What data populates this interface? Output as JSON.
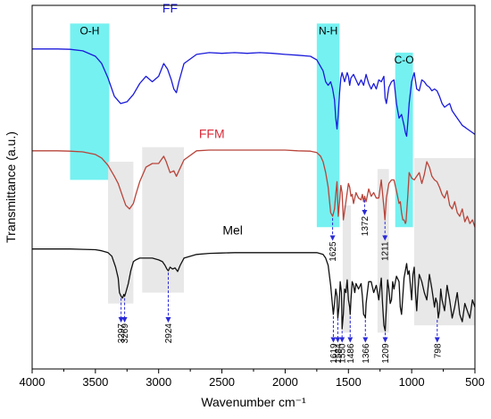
{
  "chart_data": {
    "type": "line",
    "title": "",
    "xlabel": "Wavenumber cm⁻¹",
    "ylabel": "Transmittance (a.u.)",
    "xlim": [
      4000,
      500
    ],
    "x_reversed": true,
    "xticks": [
      "4000",
      "3500",
      "3000",
      "2500",
      "2000",
      "1500",
      "1000",
      "500"
    ],
    "xtick_values": [
      4000,
      3500,
      3000,
      2500,
      2000,
      1500,
      1000,
      500
    ],
    "ylim": [
      0,
      100
    ],
    "y_ticks_shown": false,
    "grid": false,
    "series": [
      {
        "name": "FF",
        "color": "#1a1adb",
        "x": [
          4000,
          3800,
          3700,
          3600,
          3500,
          3450,
          3400,
          3350,
          3300,
          3250,
          3200,
          3150,
          3100,
          3050,
          3000,
          2960,
          2930,
          2900,
          2880,
          2860,
          2840,
          2800,
          2700,
          2600,
          2500,
          2400,
          2300,
          2200,
          2100,
          2000,
          1900,
          1800,
          1750,
          1700,
          1680,
          1660,
          1640,
          1625,
          1610,
          1600,
          1590,
          1580,
          1570,
          1560,
          1550,
          1530,
          1510,
          1500,
          1490,
          1480,
          1460,
          1440,
          1420,
          1400,
          1380,
          1370,
          1360,
          1340,
          1320,
          1300,
          1280,
          1260,
          1240,
          1220,
          1210,
          1200,
          1180,
          1160,
          1140,
          1120,
          1100,
          1080,
          1060,
          1050,
          1040,
          1030,
          1020,
          1000,
          980,
          960,
          940,
          920,
          900,
          880,
          860,
          840,
          820,
          800,
          780,
          760,
          740,
          720,
          700,
          680,
          660,
          640,
          620,
          600,
          580,
          560,
          540,
          520,
          500
        ],
        "y": [
          88.0,
          88.0,
          87.9,
          87.5,
          86.0,
          84.0,
          80.0,
          75.0,
          73.0,
          73.5,
          75.5,
          78.5,
          80.5,
          79.0,
          80.5,
          84.0,
          82.5,
          79.5,
          77.0,
          76.0,
          79.0,
          84.0,
          86.5,
          87.0,
          86.8,
          87.0,
          86.8,
          87.0,
          86.8,
          86.5,
          86.3,
          86.0,
          85.0,
          82.0,
          79.0,
          78.0,
          79.0,
          77.0,
          74.0,
          69.0,
          66.0,
          70.0,
          76.0,
          80.0,
          81.5,
          79.0,
          81.5,
          80.5,
          78.0,
          80.0,
          81.0,
          79.5,
          78.0,
          79.5,
          78.0,
          79.5,
          81.0,
          78.5,
          77.0,
          78.5,
          77.0,
          79.5,
          79.0,
          80.5,
          74.5,
          73.0,
          77.5,
          79.0,
          79.5,
          73.0,
          69.0,
          70.0,
          67.0,
          65.0,
          64.0,
          68.0,
          73.0,
          79.0,
          81.5,
          77.0,
          76.5,
          79.5,
          79.0,
          78.0,
          77.5,
          76.5,
          77.0,
          76.5,
          75.0,
          73.0,
          72.0,
          72.5,
          73.0,
          71.0,
          70.0,
          69.0,
          68.0,
          67.0,
          66.5,
          66.0,
          65.5,
          65.0,
          64.5
        ]
      },
      {
        "name": "FFM",
        "color": "#b8443a",
        "x": [
          4000,
          3800,
          3700,
          3600,
          3500,
          3450,
          3400,
          3350,
          3320,
          3300,
          3280,
          3260,
          3230,
          3200,
          3180,
          3150,
          3100,
          3050,
          3000,
          2960,
          2940,
          2930,
          2910,
          2880,
          2860,
          2840,
          2800,
          2700,
          2600,
          2500,
          2400,
          2300,
          2200,
          2100,
          2000,
          1900,
          1800,
          1750,
          1720,
          1700,
          1680,
          1660,
          1640,
          1625,
          1610,
          1600,
          1590,
          1580,
          1570,
          1560,
          1550,
          1540,
          1520,
          1500,
          1490,
          1480,
          1470,
          1460,
          1440,
          1420,
          1400,
          1390,
          1380,
          1372,
          1360,
          1340,
          1320,
          1300,
          1280,
          1260,
          1240,
          1220,
          1211,
          1200,
          1180,
          1160,
          1140,
          1120,
          1100,
          1090,
          1080,
          1070,
          1060,
          1050,
          1045,
          1040,
          1030,
          1020,
          1000,
          980,
          960,
          940,
          920,
          900,
          880,
          860,
          840,
          820,
          800,
          780,
          760,
          740,
          720,
          700,
          680,
          660,
          640,
          620,
          600,
          580,
          560,
          540,
          520,
          500
        ],
        "y": [
          60.0,
          60.0,
          59.9,
          59.7,
          59.0,
          58.0,
          56.0,
          53.0,
          51.0,
          49.0,
          47.0,
          45.0,
          44.0,
          45.5,
          48.0,
          51.5,
          55.5,
          56.5,
          56.5,
          58.5,
          57.0,
          56.0,
          54.0,
          54.5,
          53.0,
          54.5,
          57.5,
          60.0,
          60.2,
          60.2,
          60.2,
          60.2,
          60.2,
          60.2,
          60.2,
          60.0,
          59.9,
          59.5,
          58.5,
          57.0,
          54.0,
          50.0,
          43.0,
          42.0,
          44.0,
          48.0,
          51.5,
          42.0,
          46.0,
          50.5,
          48.5,
          41.0,
          46.0,
          51.0,
          50.0,
          47.5,
          48.0,
          45.5,
          48.5,
          47.0,
          46.5,
          48.0,
          46.0,
          47.5,
          46.0,
          49.5,
          47.5,
          48.5,
          47.0,
          47.0,
          52.0,
          44.5,
          41.0,
          47.0,
          51.0,
          52.0,
          52.0,
          49.0,
          45.5,
          46.0,
          43.0,
          41.0,
          41.0,
          40.0,
          40.5,
          43.0,
          48.0,
          54.0,
          52.5,
          52.0,
          53.0,
          54.0,
          51.0,
          53.5,
          57.0,
          55.5,
          53.0,
          52.0,
          51.5,
          50.0,
          48.0,
          47.0,
          49.0,
          45.0,
          44.0,
          46.0,
          43.0,
          42.0,
          44.0,
          40.5,
          42.0,
          40.0,
          41.0,
          39.0
        ]
      },
      {
        "name": "Mel",
        "color": "#111111",
        "x": [
          4000,
          3800,
          3700,
          3600,
          3500,
          3450,
          3400,
          3370,
          3340,
          3320,
          3310,
          3297,
          3285,
          3275,
          3269,
          3260,
          3240,
          3220,
          3200,
          3180,
          3150,
          3100,
          3050,
          3000,
          2970,
          2950,
          2935,
          2924,
          2910,
          2890,
          2870,
          2850,
          2830,
          2800,
          2700,
          2600,
          2500,
          2400,
          2300,
          2200,
          2100,
          2000,
          1900,
          1800,
          1750,
          1700,
          1680,
          1660,
          1640,
          1625,
          1619,
          1610,
          1600,
          1590,
          1584,
          1575,
          1565,
          1555,
          1550,
          1540,
          1530,
          1520,
          1510,
          1500,
          1490,
          1486,
          1480,
          1470,
          1460,
          1450,
          1440,
          1420,
          1400,
          1390,
          1380,
          1370,
          1366,
          1360,
          1350,
          1340,
          1320,
          1300,
          1280,
          1260,
          1240,
          1230,
          1220,
          1209,
          1200,
          1190,
          1180,
          1170,
          1160,
          1150,
          1140,
          1120,
          1100,
          1090,
          1080,
          1060,
          1040,
          1030,
          1020,
          1000,
          990,
          980,
          970,
          960,
          950,
          940,
          920,
          900,
          880,
          860,
          840,
          820,
          810,
          798,
          790,
          780,
          770,
          760,
          740,
          720,
          700,
          680,
          660,
          640,
          620,
          600,
          580,
          560,
          540,
          520,
          500
        ],
        "y": [
          33.0,
          33.0,
          33.0,
          32.9,
          32.8,
          32.5,
          32.0,
          31.0,
          28.0,
          25.0,
          21.0,
          20.0,
          19.5,
          20.5,
          20.0,
          21.0,
          23.5,
          27.0,
          29.5,
          30.0,
          30.5,
          30.5,
          30.5,
          30.0,
          29.5,
          28.5,
          27.5,
          27.0,
          28.0,
          27.5,
          27.8,
          26.8,
          28.5,
          30.5,
          31.5,
          31.8,
          31.9,
          32.0,
          32.0,
          32.0,
          32.0,
          32.0,
          32.0,
          32.0,
          32.0,
          31.5,
          30.5,
          28.5,
          23.0,
          17.0,
          15.0,
          18.0,
          22.0,
          20.0,
          14.0,
          17.0,
          24.0,
          21.0,
          11.0,
          15.0,
          22.0,
          21.0,
          24.5,
          19.0,
          17.0,
          15.0,
          19.0,
          24.0,
          23.0,
          21.0,
          23.5,
          22.0,
          23.5,
          20.0,
          15.0,
          14.5,
          14.0,
          18.0,
          21.0,
          24.0,
          24.0,
          21.0,
          23.0,
          19.0,
          25.0,
          18.0,
          12.0,
          10.5,
          17.0,
          24.5,
          22.0,
          18.0,
          19.0,
          24.0,
          22.0,
          25.5,
          24.0,
          17.0,
          15.0,
          25.0,
          29.0,
          26.0,
          27.0,
          19.0,
          26.0,
          28.0,
          21.0,
          16.0,
          22.0,
          26.0,
          24.0,
          21.0,
          19.0,
          26.0,
          22.0,
          17.0,
          19.5,
          18.0,
          14.0,
          16.0,
          22.0,
          19.0,
          16.0,
          23.0,
          19.0,
          14.0,
          17.0,
          21.0,
          15.0,
          13.0,
          18.0,
          16.0,
          14.0,
          19.0,
          17.0
        ]
      }
    ],
    "series_labels": [
      {
        "text": "FF",
        "color": "#1a1adb",
        "x": 2910,
        "y": 98.0
      },
      {
        "text": "FFM",
        "color": "#d92b3a",
        "x": 2580,
        "y": 63.5
      },
      {
        "text": "Mel",
        "color": "#000000",
        "x": 2415,
        "y": 37.0
      }
    ],
    "highlight_bands": [
      {
        "color": "#66f0f0",
        "x_range": [
          3700,
          3390
        ],
        "y_range": [
          52.0,
          95.0
        ],
        "label": "O-H",
        "label_y": 92.0
      },
      {
        "color": "#66f0f0",
        "x_range": [
          1750,
          1570
        ],
        "y_range": [
          39.0,
          95.0
        ],
        "label": "N-H",
        "label_y": 92.0
      },
      {
        "color": "#66f0f0",
        "x_range": [
          1130,
          990
        ],
        "y_range": [
          39.0,
          87.0
        ],
        "label": "C-O",
        "label_y": 84.0
      },
      {
        "color": "#e5e5e5",
        "x_range": [
          3400,
          3200
        ],
        "y_range": [
          18.0,
          57.0
        ],
        "label": "",
        "label_y": 0
      },
      {
        "color": "#e5e5e5",
        "x_range": [
          3130,
          2800
        ],
        "y_range": [
          21.0,
          61.0
        ],
        "label": "",
        "label_y": 0
      },
      {
        "color": "#e5e5e5",
        "x_range": [
          1545,
          1480
        ],
        "y_range": [
          10.0,
          45.0
        ],
        "label": "",
        "label_y": 0
      },
      {
        "color": "#e5e5e5",
        "x_range": [
          1270,
          1180
        ],
        "y_range": [
          10.0,
          55.0
        ],
        "label": "",
        "label_y": 0
      },
      {
        "color": "#e5e5e5",
        "x_range": [
          980,
          500
        ],
        "y_range": [
          12.0,
          58.0
        ],
        "label": "",
        "label_y": 0
      }
    ],
    "peak_annotations": [
      {
        "label": "1625",
        "x": 1625,
        "y_from": 41.5,
        "y_to": 36.0
      },
      {
        "label": "1372",
        "x": 1372,
        "y_from": 46.5,
        "y_to": 43.0
      },
      {
        "label": "1211",
        "x": 1211,
        "y_from": 40.5,
        "y_to": 36.0
      },
      {
        "label": "3297",
        "x": 3297,
        "y_from": 19.5,
        "y_to": 13.5
      },
      {
        "label": "3269",
        "x": 3269,
        "y_from": 19.5,
        "y_to": 13.5
      },
      {
        "label": "2924",
        "x": 2924,
        "y_from": 26.5,
        "y_to": 13.5
      },
      {
        "label": "1619",
        "x": 1619,
        "y_from": 14.5,
        "y_to": 8.0
      },
      {
        "label": "1584",
        "x": 1584,
        "y_from": 14.0,
        "y_to": 8.0
      },
      {
        "label": "1550",
        "x": 1550,
        "y_from": 10.5,
        "y_to": 8.0
      },
      {
        "label": "1486",
        "x": 1486,
        "y_from": 14.5,
        "y_to": 8.0
      },
      {
        "label": "1366",
        "x": 1366,
        "y_from": 13.5,
        "y_to": 8.0
      },
      {
        "label": "1209",
        "x": 1209,
        "y_from": 10.0,
        "y_to": 8.0
      },
      {
        "label": "798",
        "x": 798,
        "y_from": 13.5,
        "y_to": 8.0
      }
    ],
    "annotation_arrow_color": "#2a2ad8",
    "legend": "none"
  }
}
